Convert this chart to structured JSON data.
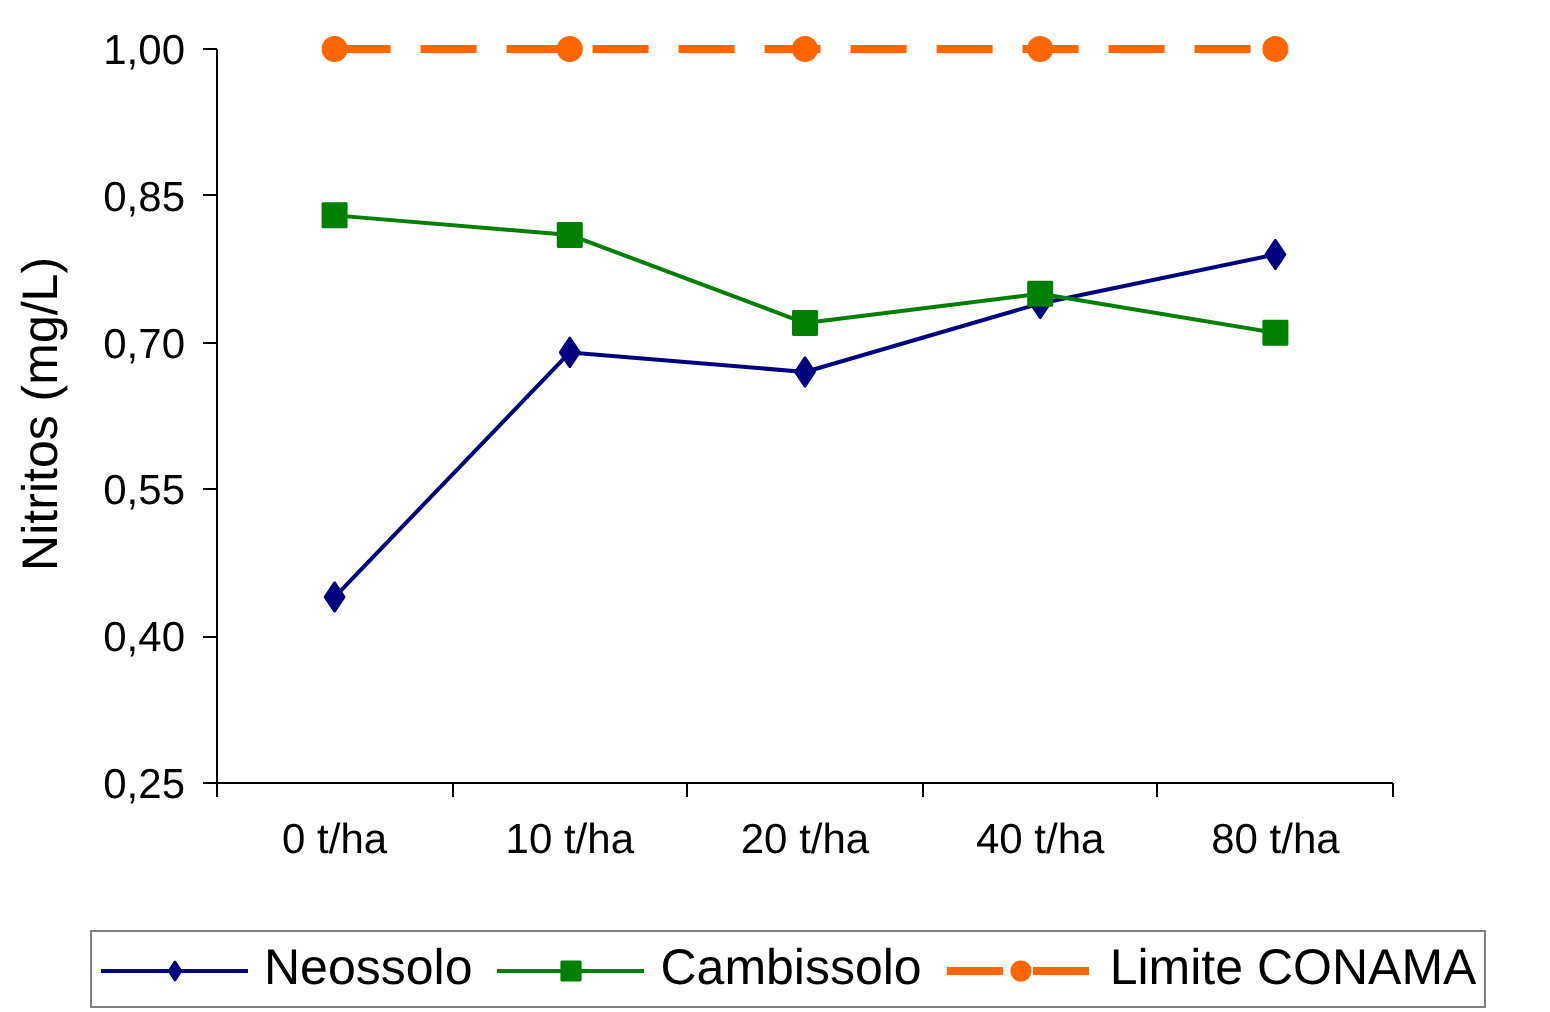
{
  "chart_data": {
    "type": "line",
    "ylabel": "Nitritos  (mg/L)",
    "categories": [
      "0 t/ha",
      "10 t/ha",
      "20 t/ha",
      "40 t/ha",
      "80 t/ha"
    ],
    "series": [
      {
        "name": "Neossolo",
        "color": "#000080",
        "marker": "diamond",
        "values": [
          0.44,
          0.69,
          0.67,
          0.74,
          0.79
        ]
      },
      {
        "name": "Cambissolo",
        "color": "#008000",
        "marker": "square",
        "values": [
          0.83,
          0.81,
          0.72,
          0.75,
          0.71
        ]
      },
      {
        "name": "Limite CONAMA",
        "color": "#ff6600",
        "marker": "circle",
        "line_style": "dashed",
        "values": [
          1.0,
          1.0,
          1.0,
          1.0,
          1.0
        ]
      }
    ],
    "ylim": [
      0.25,
      1.0
    ],
    "yticks": [
      {
        "value": 0.25,
        "label": "0,25"
      },
      {
        "value": 0.4,
        "label": "0,40"
      },
      {
        "value": 0.55,
        "label": "0,55"
      },
      {
        "value": 0.7,
        "label": "0,70"
      },
      {
        "value": 0.85,
        "label": "0,85"
      },
      {
        "value": 1.0,
        "label": "1,00"
      }
    ],
    "grid": false,
    "legend": "bottom"
  }
}
